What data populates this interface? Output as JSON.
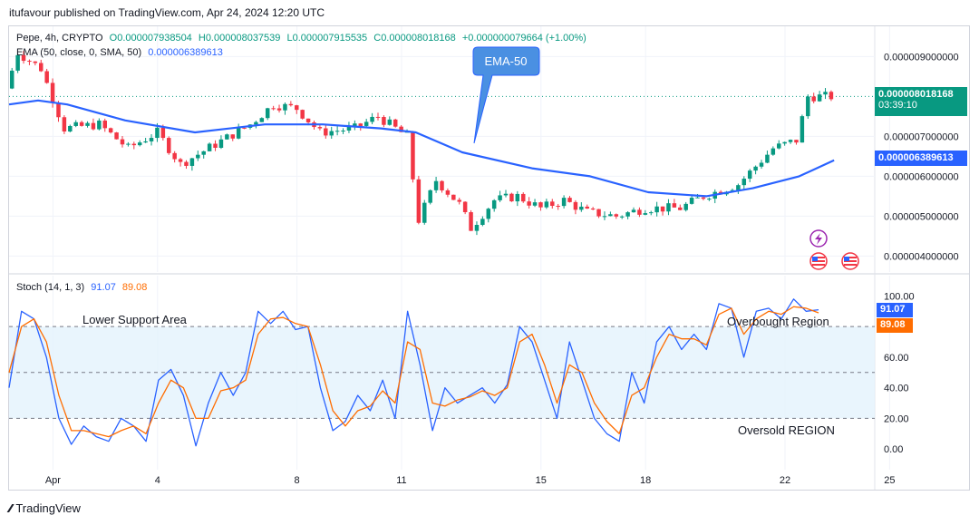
{
  "header": {
    "publish_line": "itufavour published on TradingView.com, Apr 24, 2024 12:20 UTC"
  },
  "legend": {
    "symbol": "Pepe, 4h, CRYPTO",
    "open": "O0.000007938504",
    "high": "H0.000008037539",
    "low": "L0.000007915535",
    "close": "C0.000008018168",
    "change": "+0.000000079664 (+1.00%)",
    "ema_label": "EMA (50, close, 0, SMA, 50)",
    "ema_value": "0.000006389613",
    "stoch_label": "Stoch (14, 1, 3)",
    "stoch_k": "91.07",
    "stoch_d": "89.08"
  },
  "annotations": {
    "ema_callout": "EMA-50",
    "lower_support": "Lower Support Area",
    "overbought": "Overbought Region",
    "oversold": "Oversold REGION"
  },
  "badges": {
    "price": "0.000008018168",
    "countdown": "03:39:10",
    "ema": "0.000006389613",
    "k": "91.07",
    "d": "89.08"
  },
  "colors": {
    "up": "#089981",
    "down": "#f23645",
    "ema": "#2962ff",
    "k": "#2962ff",
    "d": "#ff6d00",
    "band": "#e3f2fd"
  },
  "footer": {
    "brand": "TradingView"
  },
  "chart_data": [
    {
      "type": "candlestick",
      "price_axis": {
        "ticks": [
          "0.000009000000",
          "0.000007000000",
          "0.000006000000",
          "0.000005000000",
          "0.000004000000"
        ],
        "range": [
          3.6e-06,
          9.6e-06
        ]
      },
      "time_axis": {
        "ticks": [
          "Apr",
          "4",
          "8",
          "11",
          "15",
          "18",
          "22",
          "25"
        ]
      },
      "price_path": [
        [
          "2024-03-31 20:00",
          8.2e-06
        ],
        [
          "2024-04-01 04:00",
          9.1e-06
        ],
        [
          "2024-04-01 20:00",
          8.7e-06
        ],
        [
          "2024-04-02 12:00",
          7.2e-06
        ],
        [
          "2024-04-03 12:00",
          7.3e-06
        ],
        [
          "2024-04-04 08:00",
          6.7e-06
        ],
        [
          "2024-04-05 04:00",
          7.1e-06
        ],
        [
          "2024-04-05 20:00",
          6.3e-06
        ],
        [
          "2024-04-06 20:00",
          6.8e-06
        ],
        [
          "2024-04-07 20:00",
          7.3e-06
        ],
        [
          "2024-04-08 12:00",
          7.8e-06
        ],
        [
          "2024-04-09 04:00",
          7.7e-06
        ],
        [
          "2024-04-09 20:00",
          7.1e-06
        ],
        [
          "2024-04-10 20:00",
          7.2e-06
        ],
        [
          "2024-04-11 12:00",
          7.5e-06
        ],
        [
          "2024-04-12 08:00",
          7e-06
        ],
        [
          "2024-04-12 16:00",
          4.9e-06
        ],
        [
          "2024-04-13 04:00",
          5.9e-06
        ],
        [
          "2024-04-13 20:00",
          5.3e-06
        ],
        [
          "2024-04-14 04:00",
          4.7e-06
        ],
        [
          "2024-04-14 20:00",
          5.4e-06
        ],
        [
          "2024-04-15 12:00",
          5.5e-06
        ],
        [
          "2024-04-16 04:00",
          5.2e-06
        ],
        [
          "2024-04-16 20:00",
          5.4e-06
        ],
        [
          "2024-04-17 12:00",
          5.1e-06
        ],
        [
          "2024-04-18 08:00",
          5e-06
        ],
        [
          "2024-04-19 04:00",
          5.2e-06
        ],
        [
          "2024-04-20 04:00",
          5.2e-06
        ],
        [
          "2024-04-20 20:00",
          5.5e-06
        ],
        [
          "2024-04-21 20:00",
          5.8e-06
        ],
        [
          "2024-04-22 20:00",
          6.7e-06
        ],
        [
          "2024-04-23 12:00",
          6.9e-06
        ],
        [
          "2024-04-23 20:00",
          8e-06
        ],
        [
          "2024-04-24 08:00",
          8e-06
        ]
      ],
      "ema_path": [
        [
          "2024-03-31 20:00",
          7.8e-06
        ],
        [
          "2024-04-01 16:00",
          7.9e-06
        ],
        [
          "2024-04-02 12:00",
          7.8e-06
        ],
        [
          "2024-04-04 04:00",
          7.4e-06
        ],
        [
          "2024-04-06 04:00",
          7.1e-06
        ],
        [
          "2024-04-08 04:00",
          7.3e-06
        ],
        [
          "2024-04-09 20:00",
          7.3e-06
        ],
        [
          "2024-04-11 12:00",
          7.2e-06
        ],
        [
          "2024-04-12 12:00",
          7.1e-06
        ],
        [
          "2024-04-13 20:00",
          6.6e-06
        ],
        [
          "2024-04-15 20:00",
          6.2e-06
        ],
        [
          "2024-04-17 12:00",
          6e-06
        ],
        [
          "2024-04-19 04:00",
          5.6e-06
        ],
        [
          "2024-04-20 20:00",
          5.5e-06
        ],
        [
          "2024-04-22 04:00",
          5.7e-06
        ],
        [
          "2024-04-23 12:00",
          6e-06
        ],
        [
          "2024-04-24 12:00",
          6.4e-06
        ]
      ]
    },
    {
      "type": "line",
      "title": "Stoch (14, 1, 3)",
      "y_axis": {
        "ticks": [
          "100.00",
          "80.00",
          "60.00",
          "40.00",
          "20.00",
          "0.00"
        ],
        "range": [
          -10,
          105
        ]
      },
      "bands": [
        20,
        50,
        80
      ],
      "series": [
        {
          "name": "K",
          "values": [
            40,
            90,
            85,
            60,
            20,
            3,
            15,
            8,
            5,
            20,
            15,
            5,
            45,
            52,
            35,
            2,
            30,
            50,
            35,
            50,
            90,
            82,
            90,
            78,
            80,
            40,
            12,
            18,
            35,
            25,
            45,
            20,
            90,
            55,
            12,
            40,
            30,
            35,
            40,
            30,
            42,
            80,
            70,
            45,
            20,
            70,
            45,
            20,
            10,
            5,
            50,
            30,
            70,
            80,
            65,
            75,
            65,
            95,
            92,
            60,
            90,
            92,
            85,
            98,
            90,
            91
          ]
        },
        {
          "name": "D",
          "values": [
            50,
            80,
            85,
            70,
            35,
            12,
            12,
            10,
            8,
            12,
            15,
            10,
            30,
            45,
            40,
            20,
            20,
            38,
            40,
            45,
            75,
            85,
            86,
            82,
            80,
            55,
            25,
            15,
            25,
            28,
            38,
            30,
            70,
            65,
            30,
            28,
            32,
            34,
            38,
            35,
            40,
            70,
            75,
            55,
            30,
            55,
            50,
            30,
            18,
            10,
            35,
            40,
            60,
            75,
            72,
            72,
            68,
            88,
            92,
            75,
            85,
            90,
            88,
            93,
            92,
            89
          ]
        }
      ]
    }
  ]
}
